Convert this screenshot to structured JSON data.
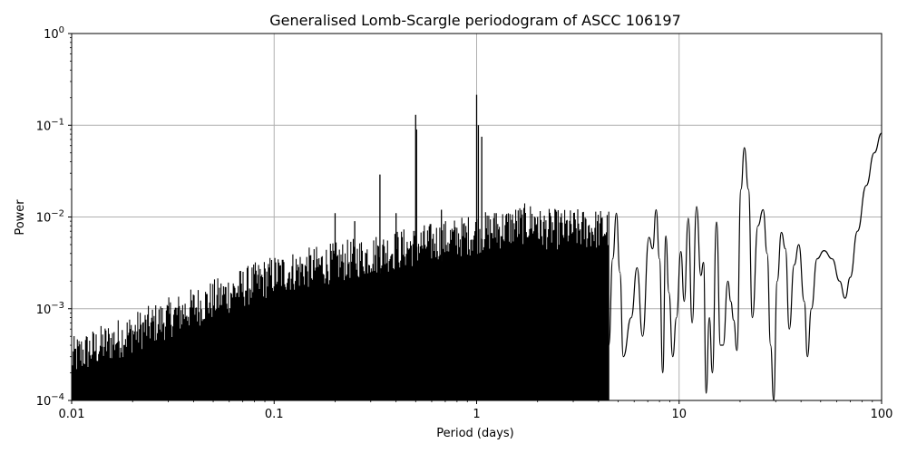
{
  "chart_data": {
    "type": "line",
    "title": "Generalised Lomb-Scargle periodogram of ASCC 106197",
    "xlabel": "Period (days)",
    "ylabel": "Power",
    "xscale": "log",
    "yscale": "log",
    "xlim": [
      0.01,
      100
    ],
    "ylim": [
      0.0001,
      1
    ],
    "grid": true,
    "line_color": "#000000",
    "grid_color": "#b0b0b0",
    "x_ticks": [
      {
        "value": 0.01,
        "label": "0.01"
      },
      {
        "value": 0.1,
        "label": "0.1"
      },
      {
        "value": 1,
        "label": "1"
      },
      {
        "value": 10,
        "label": "10"
      },
      {
        "value": 100,
        "label": "100"
      }
    ],
    "y_ticks": [
      {
        "value": 0.0001,
        "base": "10",
        "exp": "−4"
      },
      {
        "value": 0.001,
        "base": "10",
        "exp": "−3"
      },
      {
        "value": 0.01,
        "base": "10",
        "exp": "−2"
      },
      {
        "value": 0.1,
        "base": "10",
        "exp": "−1"
      },
      {
        "value": 1,
        "base": "10",
        "exp": "0"
      }
    ],
    "peaks": [
      {
        "x": 0.2,
        "y": 0.011
      },
      {
        "x": 0.25,
        "y": 0.009
      },
      {
        "x": 0.333,
        "y": 0.029
      },
      {
        "x": 0.4,
        "y": 0.011
      },
      {
        "x": 0.5,
        "y": 0.13
      },
      {
        "x": 0.505,
        "y": 0.09
      },
      {
        "x": 0.67,
        "y": 0.012
      },
      {
        "x": 1.0,
        "y": 0.215
      },
      {
        "x": 1.02,
        "y": 0.1
      },
      {
        "x": 1.06,
        "y": 0.075
      },
      {
        "x": 1.25,
        "y": 0.011
      },
      {
        "x": 2.0,
        "y": 0.01
      }
    ],
    "smooth_points": [
      [
        4.5,
        0.0004
      ],
      [
        4.7,
        0.0035
      ],
      [
        4.9,
        0.011
      ],
      [
        5.1,
        0.0025
      ],
      [
        5.3,
        0.0003
      ],
      [
        5.8,
        0.0008
      ],
      [
        6.2,
        0.0028
      ],
      [
        6.6,
        0.0005
      ],
      [
        7.1,
        0.006
      ],
      [
        7.4,
        0.0045
      ],
      [
        7.7,
        0.012
      ],
      [
        8.0,
        0.0035
      ],
      [
        8.3,
        0.0002
      ],
      [
        8.6,
        0.0062
      ],
      [
        8.9,
        0.0015
      ],
      [
        9.3,
        0.0003
      ],
      [
        9.7,
        0.0008
      ],
      [
        10.2,
        0.0042
      ],
      [
        10.6,
        0.0012
      ],
      [
        11.1,
        0.0097
      ],
      [
        11.6,
        0.0007
      ],
      [
        12.2,
        0.013
      ],
      [
        12.8,
        0.0023
      ],
      [
        13.2,
        0.0032
      ],
      [
        13.6,
        0.00012
      ],
      [
        14.1,
        0.0008
      ],
      [
        14.6,
        0.0002
      ],
      [
        15.3,
        0.0088
      ],
      [
        16.0,
        0.0004
      ],
      [
        16.5,
        0.0004
      ],
      [
        17.4,
        0.002
      ],
      [
        18.0,
        0.0012
      ],
      [
        18.6,
        0.00075
      ],
      [
        19.3,
        0.00035
      ],
      [
        20.2,
        0.02
      ],
      [
        21.0,
        0.057
      ],
      [
        22.0,
        0.02
      ],
      [
        23.0,
        0.0008
      ],
      [
        24.5,
        0.008
      ],
      [
        26.0,
        0.012
      ],
      [
        27.2,
        0.004
      ],
      [
        28.3,
        0.0004
      ],
      [
        29.3,
        0.0001
      ],
      [
        30.5,
        0.002
      ],
      [
        32.0,
        0.0068
      ],
      [
        33.5,
        0.0045
      ],
      [
        35.0,
        0.0006
      ],
      [
        37.0,
        0.003
      ],
      [
        39.0,
        0.005
      ],
      [
        41.5,
        0.0012
      ],
      [
        43.0,
        0.0003
      ],
      [
        45.0,
        0.001
      ],
      [
        48.0,
        0.0035
      ],
      [
        52.0,
        0.0043
      ],
      [
        57.0,
        0.0035
      ],
      [
        62.0,
        0.002
      ],
      [
        66.0,
        0.0013
      ],
      [
        70.0,
        0.0022
      ],
      [
        76.0,
        0.007
      ],
      [
        84.0,
        0.022
      ],
      [
        92.0,
        0.05
      ],
      [
        100.0,
        0.082
      ]
    ]
  }
}
